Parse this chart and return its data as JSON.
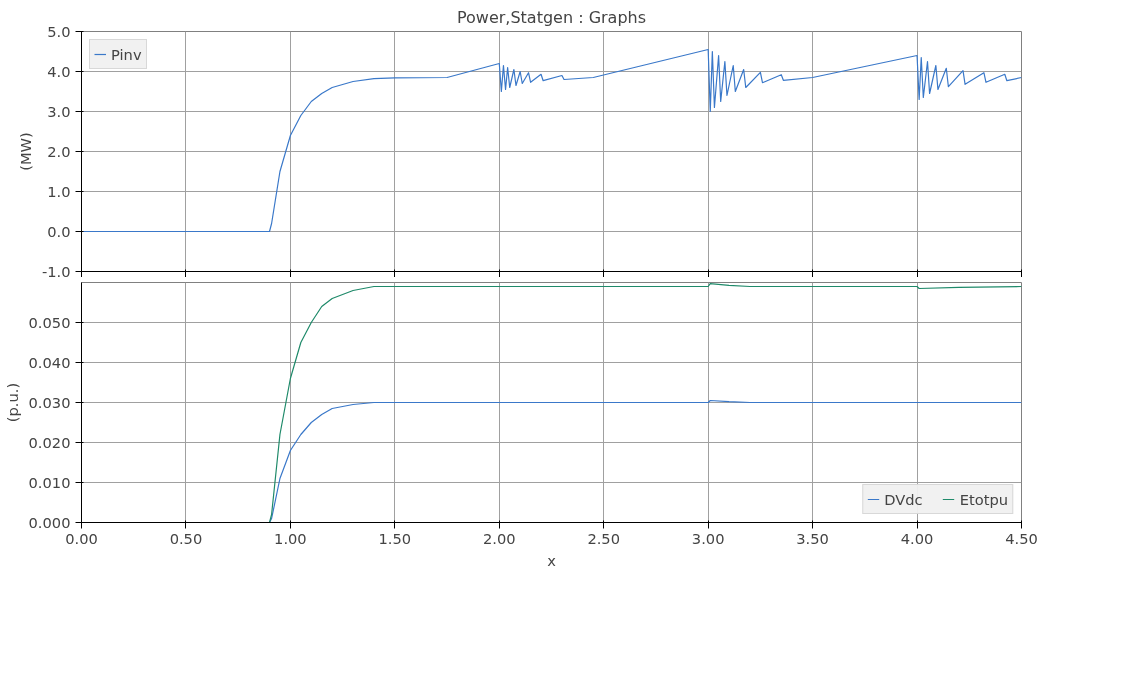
{
  "chart_data": [
    {
      "type": "line",
      "title": "Power,Statgen : Graphs",
      "ylabel": "(MW)",
      "legend": "top left",
      "grid": true,
      "tick_labels": "y",
      "line_style": "solid",
      "xlim": [
        0,
        4.5
      ],
      "ylim": [
        -1,
        5
      ],
      "xticks": [
        {
          "value": 0,
          "label": null
        },
        {
          "value": 0.5,
          "label": null
        },
        {
          "value": 1,
          "label": null
        },
        {
          "value": 1.5,
          "label": null
        },
        {
          "value": 2,
          "label": null
        },
        {
          "value": 2.5,
          "label": null
        },
        {
          "value": 3,
          "label": null
        },
        {
          "value": 3.5,
          "label": null
        },
        {
          "value": 4,
          "label": null
        },
        {
          "value": 4.5,
          "label": null
        }
      ],
      "yticks": [
        {
          "value": -1,
          "label": "-1.0"
        },
        {
          "value": 0,
          "label": "0.0"
        },
        {
          "value": 1,
          "label": "1.0"
        },
        {
          "value": 2,
          "label": "2.0"
        },
        {
          "value": 3,
          "label": "3.0"
        },
        {
          "value": 4,
          "label": "4.0"
        },
        {
          "value": 5,
          "label": "5.0"
        }
      ],
      "series": [
        {
          "name": "Pinv",
          "color": "#3a78c9",
          "x": [
            0,
            0.9,
            0.91,
            0.95,
            1.0,
            1.05,
            1.1,
            1.15,
            1.2,
            1.3,
            1.4,
            1.5,
            1.75,
            2.0,
            2.01,
            2.02,
            2.03,
            2.04,
            2.05,
            2.07,
            2.08,
            2.1,
            2.11,
            2.14,
            2.15,
            2.2,
            2.21,
            2.3,
            2.31,
            2.45,
            3.0,
            3.01,
            3.02,
            3.03,
            3.05,
            3.06,
            3.08,
            3.09,
            3.12,
            3.13,
            3.17,
            3.18,
            3.25,
            3.26,
            3.35,
            3.36,
            3.5,
            4.0,
            4.01,
            4.02,
            4.03,
            4.05,
            4.06,
            4.09,
            4.1,
            4.14,
            4.15,
            4.22,
            4.23,
            4.32,
            4.33,
            4.42,
            4.43,
            4.5
          ],
          "values": [
            0,
            0,
            0.2,
            1.5,
            2.4,
            2.9,
            3.25,
            3.45,
            3.6,
            3.75,
            3.82,
            3.84,
            3.85,
            4.2,
            3.5,
            4.15,
            3.55,
            4.1,
            3.6,
            4.05,
            3.65,
            4.0,
            3.7,
            3.97,
            3.73,
            3.93,
            3.77,
            3.9,
            3.8,
            3.85,
            4.55,
            3.0,
            4.5,
            3.1,
            4.4,
            3.25,
            4.25,
            3.4,
            4.15,
            3.5,
            4.05,
            3.6,
            3.98,
            3.72,
            3.92,
            3.78,
            3.85,
            4.4,
            3.3,
            4.35,
            3.35,
            4.25,
            3.45,
            4.15,
            3.55,
            4.08,
            3.62,
            4.02,
            3.68,
            3.97,
            3.73,
            3.93,
            3.77,
            3.85
          ]
        }
      ]
    },
    {
      "type": "line",
      "xlabel": "x",
      "ylabel": "(p.u.)",
      "legend": "bottom right",
      "grid": true,
      "line_style": "solid",
      "xlim": [
        0,
        4.5
      ],
      "ylim": [
        0,
        0.06
      ],
      "xticks": [
        {
          "value": 0,
          "label": "0.00"
        },
        {
          "value": 0.5,
          "label": "0.50"
        },
        {
          "value": 1,
          "label": "1.00"
        },
        {
          "value": 1.5,
          "label": "1.50"
        },
        {
          "value": 2,
          "label": "2.00"
        },
        {
          "value": 2.5,
          "label": "2.50"
        },
        {
          "value": 3,
          "label": "3.00"
        },
        {
          "value": 3.5,
          "label": "3.50"
        },
        {
          "value": 4,
          "label": "4.00"
        },
        {
          "value": 4.5,
          "label": "4.50"
        }
      ],
      "yticks": [
        {
          "value": 0,
          "label": "0.000"
        },
        {
          "value": 0.01,
          "label": "0.010"
        },
        {
          "value": 0.02,
          "label": "0.020"
        },
        {
          "value": 0.03,
          "label": "0.030"
        },
        {
          "value": 0.04,
          "label": "0.040"
        },
        {
          "value": 0.05,
          "label": "0.050"
        }
      ],
      "series": [
        {
          "name": "DVdc",
          "color": "#3a78c9",
          "x": [
            0,
            0.9,
            0.91,
            0.95,
            1.0,
            1.05,
            1.1,
            1.15,
            1.2,
            1.3,
            1.4,
            3.0,
            3.01,
            3.1,
            3.2,
            4.5
          ],
          "values": [
            0,
            0,
            0.001,
            0.011,
            0.018,
            0.022,
            0.025,
            0.027,
            0.0285,
            0.0295,
            0.03,
            0.03,
            0.0305,
            0.0302,
            0.03,
            0.03
          ]
        },
        {
          "name": "Etotpu",
          "color": "#1f8a6a",
          "x": [
            0,
            0.9,
            0.91,
            0.95,
            1.0,
            1.05,
            1.1,
            1.15,
            1.2,
            1.3,
            1.4,
            3.0,
            3.01,
            3.1,
            3.2,
            4.0,
            4.01,
            4.2,
            4.5
          ],
          "values": [
            0,
            0,
            0.002,
            0.022,
            0.036,
            0.045,
            0.05,
            0.054,
            0.056,
            0.058,
            0.059,
            0.059,
            0.0597,
            0.0593,
            0.059,
            0.059,
            0.0585,
            0.0588,
            0.059
          ]
        }
      ]
    }
  ]
}
